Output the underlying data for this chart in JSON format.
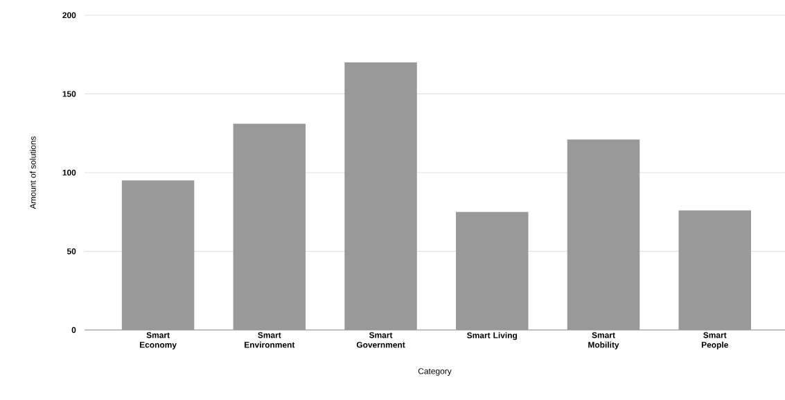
{
  "chart_data": {
    "type": "bar",
    "xlabel": "Category",
    "ylabel": "Amount of solutions",
    "categories": [
      "Smart Economy",
      "Smart Environment",
      "Smart Government",
      "Smart Living",
      "Smart Mobility",
      "Smart People"
    ],
    "values": [
      95,
      131,
      170,
      75,
      121,
      76
    ],
    "color": "#999999",
    "ylim": [
      0,
      200
    ],
    "yticks": [
      0,
      50,
      100,
      150,
      200
    ],
    "grid": "y"
  }
}
